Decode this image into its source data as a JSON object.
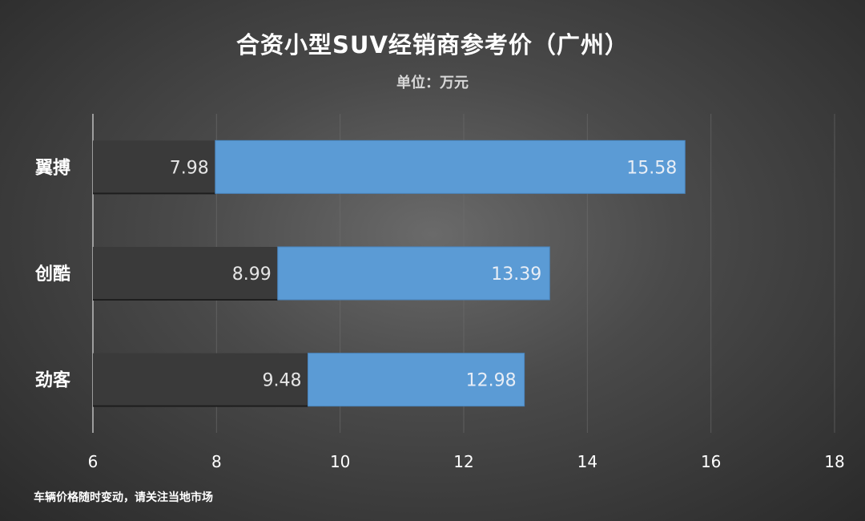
{
  "chart_data": {
    "type": "bar",
    "orientation": "horizontal",
    "title": "合资小型SUV经销商参考价（广州）",
    "subtitle": "单位：万元",
    "footnote": "车辆价格随时变动，请关注当地市场",
    "categories": [
      "翼搏",
      "创酷",
      "劲客"
    ],
    "series": [
      {
        "values": [
          7.98,
          8.99,
          9.48
        ],
        "color": "#3a3a3a"
      },
      {
        "values": [
          15.58,
          13.39,
          12.98
        ],
        "color": "#5b9bd5"
      }
    ],
    "xlim": [
      6,
      18
    ],
    "xticks": [
      6,
      8,
      10,
      12,
      14,
      16,
      18
    ],
    "grid": true
  }
}
